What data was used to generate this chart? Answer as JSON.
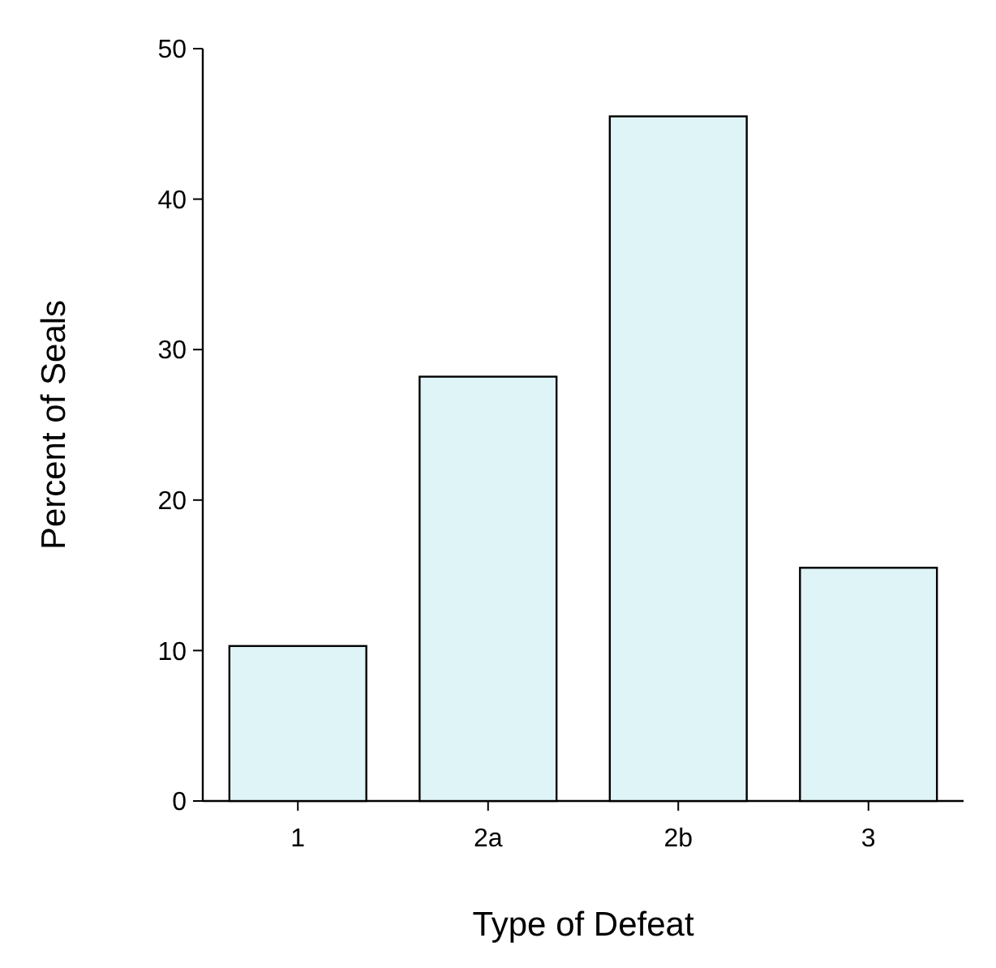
{
  "chart_data": {
    "type": "bar",
    "xlabel": "Type of Defeat",
    "ylabel": "Percent of Seals",
    "categories": [
      "1",
      "2a",
      "2b",
      "3"
    ],
    "values": [
      10.3,
      28.2,
      45.5,
      15.5
    ],
    "color": "#dff4f7",
    "ylim": [
      0,
      50
    ],
    "yticks": [
      0,
      10,
      20,
      30,
      40,
      50
    ],
    "grid": false
  }
}
